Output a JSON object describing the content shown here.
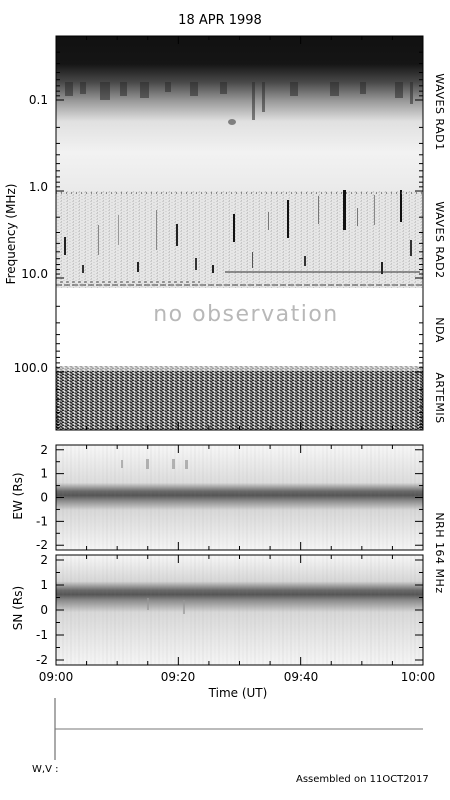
{
  "title": "18 APR 1998",
  "footer_left": "W,V :",
  "footer_right": "Assembled on 11OCT2017",
  "chart_data": [
    {
      "type": "heatmap",
      "name": "dynamic-spectrum",
      "ylabel": "Frequency (MHz)",
      "y_scale": "log",
      "y_direction": "increasing-downward",
      "y_ticks": [
        "0.1",
        "1.0",
        "10.0",
        "100.0"
      ],
      "instruments": [
        {
          "label": "WAVES RAD1",
          "freq_range_mhz": [
            0.02,
            1.1
          ]
        },
        {
          "label": "WAVES RAD2",
          "freq_range_mhz": [
            1.1,
            13.8
          ]
        },
        {
          "label": "NDA",
          "freq_range_mhz": [
            13.8,
            70
          ],
          "annotation": "no observation"
        },
        {
          "label": "ARTEMIS",
          "freq_range_mhz": [
            70,
            450
          ]
        }
      ],
      "x_range_ut": [
        "09:00",
        "10:00"
      ],
      "colormap": "grayscale-inverted"
    },
    {
      "type": "heatmap",
      "name": "NRH-EW",
      "ylabel": "EW (Rs)",
      "y_ticks": [
        "2",
        "1",
        "0",
        "-1",
        "-2"
      ],
      "ylim": [
        -2.2,
        2.2
      ],
      "emission_center_rs": 0.2,
      "instrument_label": "NRH 164 MHz"
    },
    {
      "type": "heatmap",
      "name": "NRH-SN",
      "ylabel": "SN (Rs)",
      "y_ticks": [
        "2",
        "1",
        "0",
        "-1",
        "-2"
      ],
      "ylim": [
        -2.2,
        2.2
      ],
      "emission_center_rs": 0.7
    }
  ],
  "x_axis": {
    "title": "Time (UT)",
    "tick_labels": [
      "09:00",
      "09:20",
      "09:40",
      "10:00"
    ]
  }
}
